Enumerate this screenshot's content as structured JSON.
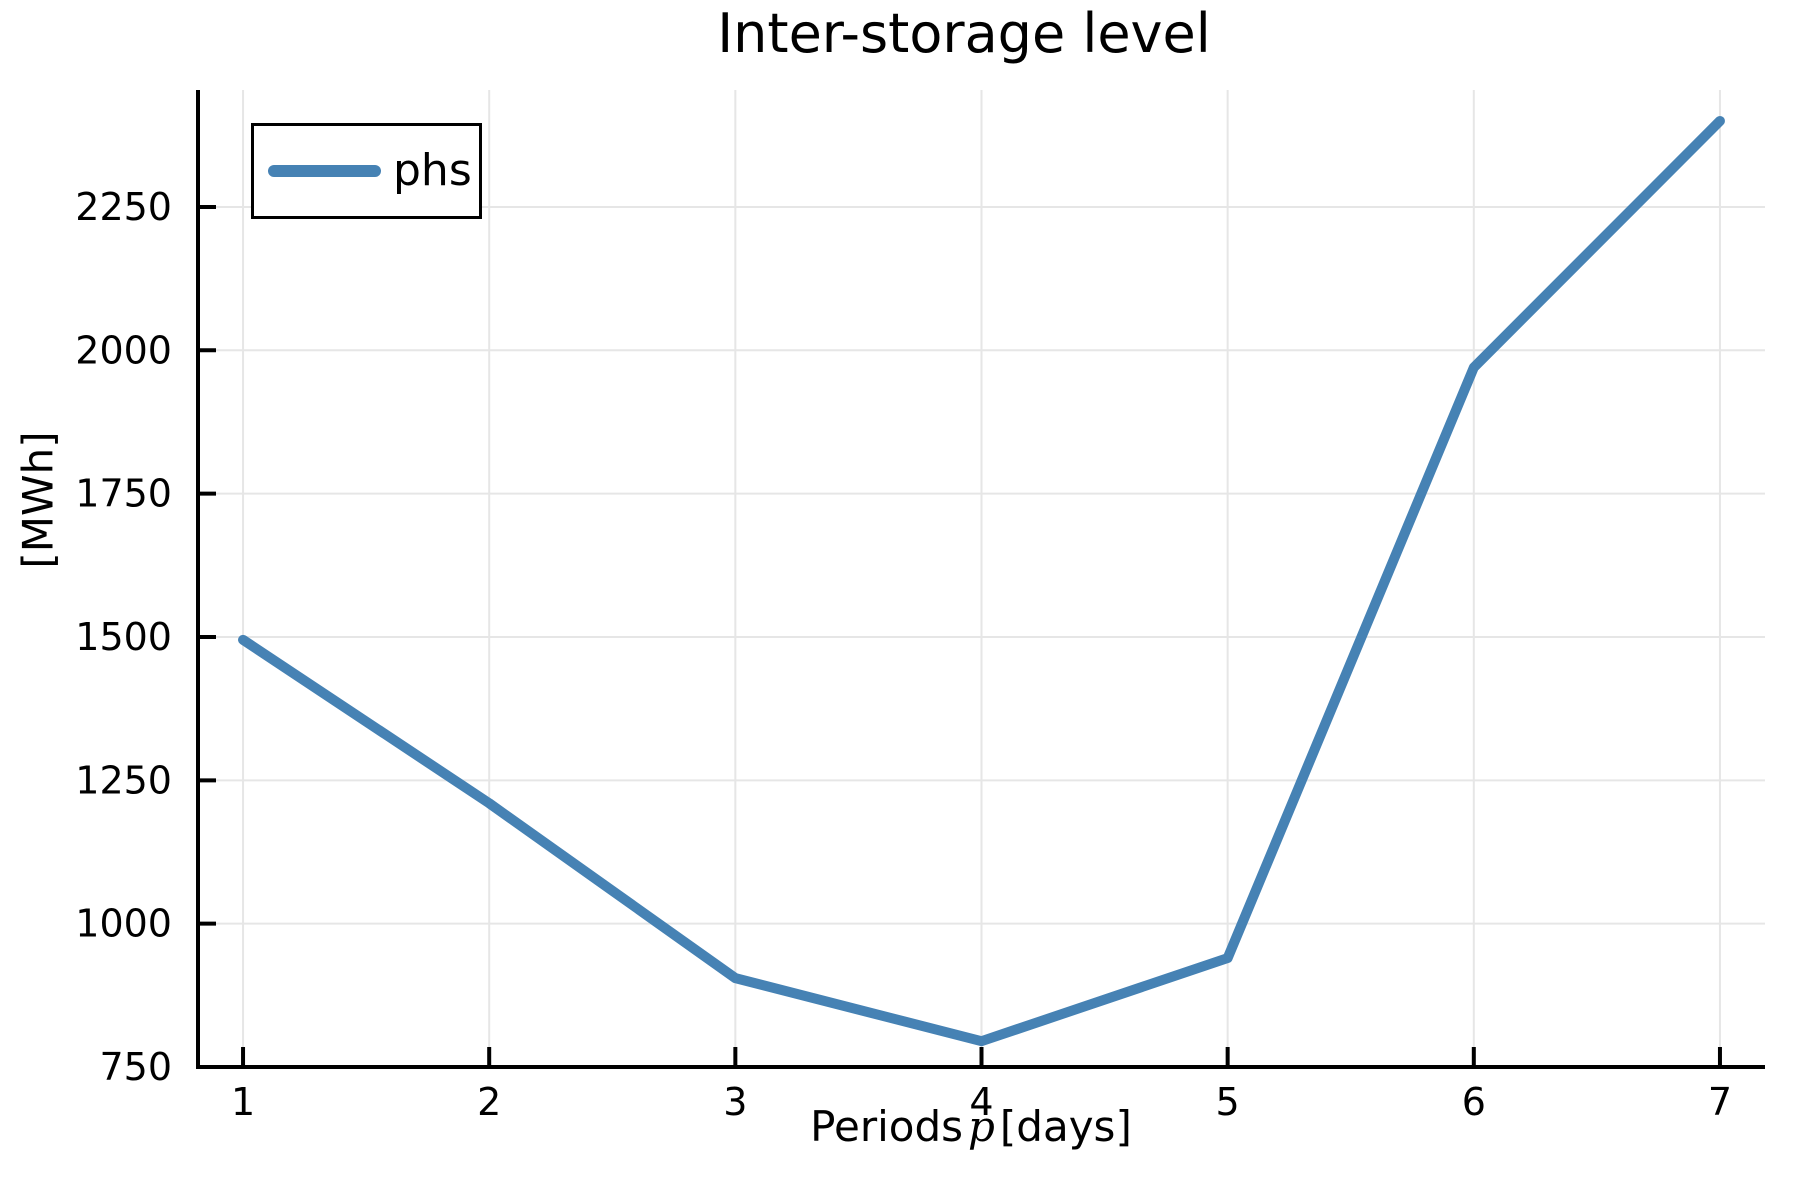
{
  "chart_data": {
    "type": "line",
    "title": "Inter-storage level",
    "xlabel_prefix": "Periods",
    "xlabel_math": "p",
    "xlabel_suffix": "[days]",
    "ylabel": "[MWh]",
    "x": [
      1,
      2,
      3,
      4,
      5,
      6,
      7
    ],
    "series": [
      {
        "name": "phs",
        "values": [
          1495,
          1210,
          905,
          795,
          940,
          1970,
          2400
        ],
        "color": "#4682B4"
      }
    ],
    "xticks": [
      1,
      2,
      3,
      4,
      5,
      6,
      7
    ],
    "yticks": [
      750,
      1000,
      1250,
      1500,
      1750,
      2000,
      2250
    ],
    "xlim": [
      0.817,
      7.183
    ],
    "ylim": [
      750,
      2454
    ],
    "grid": true,
    "legend_position": "top-left",
    "colors": {
      "line": "#4682B4",
      "grid": "#e6e6e6",
      "axis": "#000000",
      "text": "#000000",
      "background": "#ffffff"
    }
  }
}
